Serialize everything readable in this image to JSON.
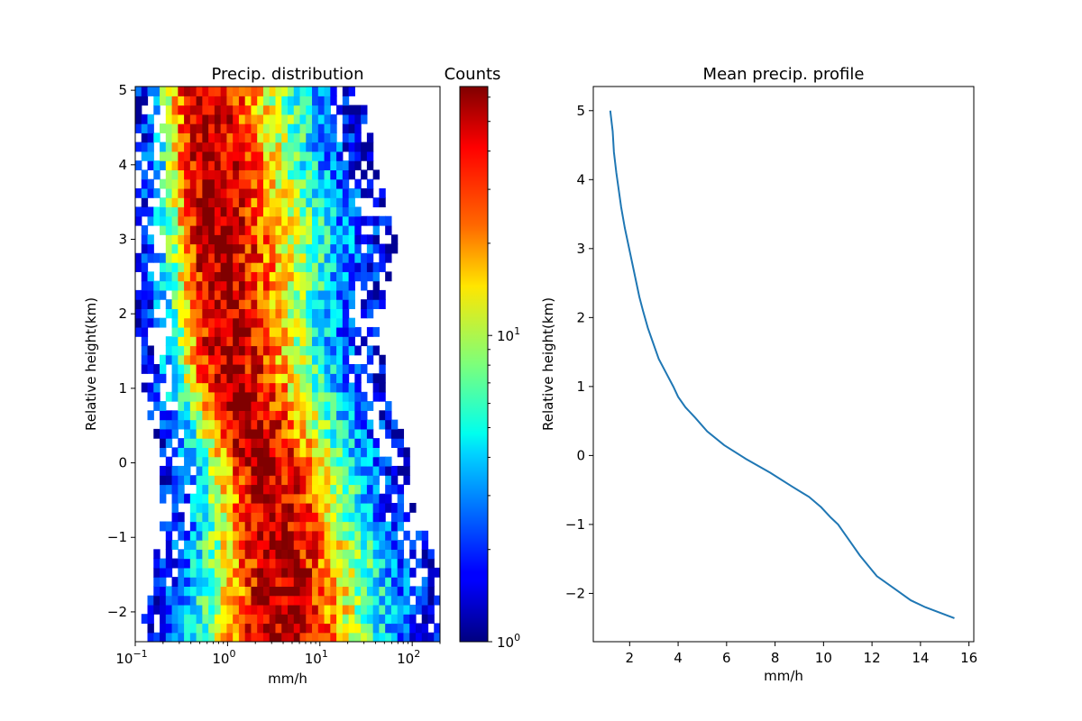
{
  "chart_data": [
    {
      "type": "heatmap",
      "title": "Precip. distribution",
      "xlabel": "mm/h",
      "ylabel": "Relative height(km)",
      "x_scale": "log",
      "xlim": [
        0.1,
        200
      ],
      "ylim": [
        -2.4,
        5.05
      ],
      "x_ticks": [
        {
          "value": 0.1,
          "base": "10",
          "exp": "−1"
        },
        {
          "value": 1,
          "base": "10",
          "exp": "0"
        },
        {
          "value": 10,
          "base": "10",
          "exp": "1"
        },
        {
          "value": 100,
          "base": "10",
          "exp": "2"
        }
      ],
      "y_ticks": [
        {
          "value": -2,
          "label": "−2"
        },
        {
          "value": -1,
          "label": "−1"
        },
        {
          "value": 0,
          "label": "0"
        },
        {
          "value": 1,
          "label": "1"
        },
        {
          "value": 2,
          "label": "2"
        },
        {
          "value": 3,
          "label": "3"
        },
        {
          "value": 4,
          "label": "4"
        },
        {
          "value": 5,
          "label": "5"
        }
      ],
      "colormap": "jet",
      "colorbar": {
        "label": "Counts",
        "scale": "log",
        "range": [
          1,
          65
        ],
        "ticks": [
          {
            "value": 1,
            "base": "10",
            "exp": "0"
          },
          {
            "value": 10,
            "base": "10",
            "exp": "1"
          }
        ]
      },
      "ridge_center_log10": [
        [
          -2.4,
          0.55
        ],
        [
          -1.5,
          0.55
        ],
        [
          -0.5,
          0.45
        ],
        [
          0,
          0.35
        ],
        [
          0.5,
          0.2
        ],
        [
          1,
          0.05
        ],
        [
          1.5,
          -0.05
        ],
        [
          2,
          -0.1
        ],
        [
          3,
          -0.18
        ],
        [
          4,
          -0.25
        ],
        [
          5,
          -0.32
        ]
      ],
      "upper_edge_log10": [
        [
          -2.4,
          2.3
        ],
        [
          -1.5,
          2.3
        ],
        [
          -0.5,
          2.0
        ],
        [
          0,
          2.0
        ],
        [
          1,
          1.7
        ],
        [
          2,
          1.65
        ],
        [
          3,
          1.85
        ],
        [
          4,
          1.6
        ],
        [
          5,
          1.45
        ]
      ],
      "lower_edge_log10": [
        [
          -2.4,
          -0.95
        ],
        [
          -1,
          -0.75
        ],
        [
          0,
          -0.7
        ],
        [
          1,
          -0.95
        ],
        [
          3,
          -1.0
        ],
        [
          5,
          -1.0
        ]
      ]
    },
    {
      "type": "line",
      "title": "Mean precip. profile",
      "xlabel": "mm/h",
      "ylabel": "Relative height(km)",
      "xlim": [
        0.5,
        16.2
      ],
      "ylim": [
        -2.7,
        5.35
      ],
      "x_ticks": [
        {
          "value": 2,
          "label": "2"
        },
        {
          "value": 4,
          "label": "4"
        },
        {
          "value": 6,
          "label": "6"
        },
        {
          "value": 8,
          "label": "8"
        },
        {
          "value": 10,
          "label": "10"
        },
        {
          "value": 12,
          "label": "12"
        },
        {
          "value": 14,
          "label": "14"
        },
        {
          "value": 16,
          "label": "16"
        }
      ],
      "y_ticks": [
        {
          "value": -2,
          "label": "−2"
        },
        {
          "value": -1,
          "label": "−1"
        },
        {
          "value": 0,
          "label": "0"
        },
        {
          "value": 1,
          "label": "1"
        },
        {
          "value": 2,
          "label": "2"
        },
        {
          "value": 3,
          "label": "3"
        },
        {
          "value": 4,
          "label": "4"
        },
        {
          "value": 5,
          "label": "5"
        }
      ],
      "color": "#1f77b4",
      "series": [
        {
          "x": [
            1.2,
            1.3,
            1.35,
            1.45,
            1.55,
            1.65,
            1.8,
            1.95,
            2.1,
            2.25,
            2.4,
            2.55,
            2.75,
            2.95,
            3.2,
            3.5,
            3.8,
            4.0,
            4.3,
            4.7,
            5.2,
            5.9,
            6.8,
            7.8,
            8.7,
            9.4,
            9.9,
            10.3,
            10.6,
            11.0,
            11.5,
            12.2,
            13.0,
            13.6,
            14.2,
            14.8,
            15.4
          ],
          "y": [
            5.0,
            4.7,
            4.4,
            4.1,
            3.85,
            3.6,
            3.3,
            3.05,
            2.8,
            2.55,
            2.3,
            2.1,
            1.85,
            1.65,
            1.4,
            1.2,
            1.0,
            0.85,
            0.7,
            0.55,
            0.35,
            0.15,
            -0.05,
            -0.25,
            -0.45,
            -0.6,
            -0.75,
            -0.9,
            -1.0,
            -1.2,
            -1.45,
            -1.75,
            -1.95,
            -2.1,
            -2.2,
            -2.28,
            -2.36
          ]
        }
      ]
    }
  ]
}
